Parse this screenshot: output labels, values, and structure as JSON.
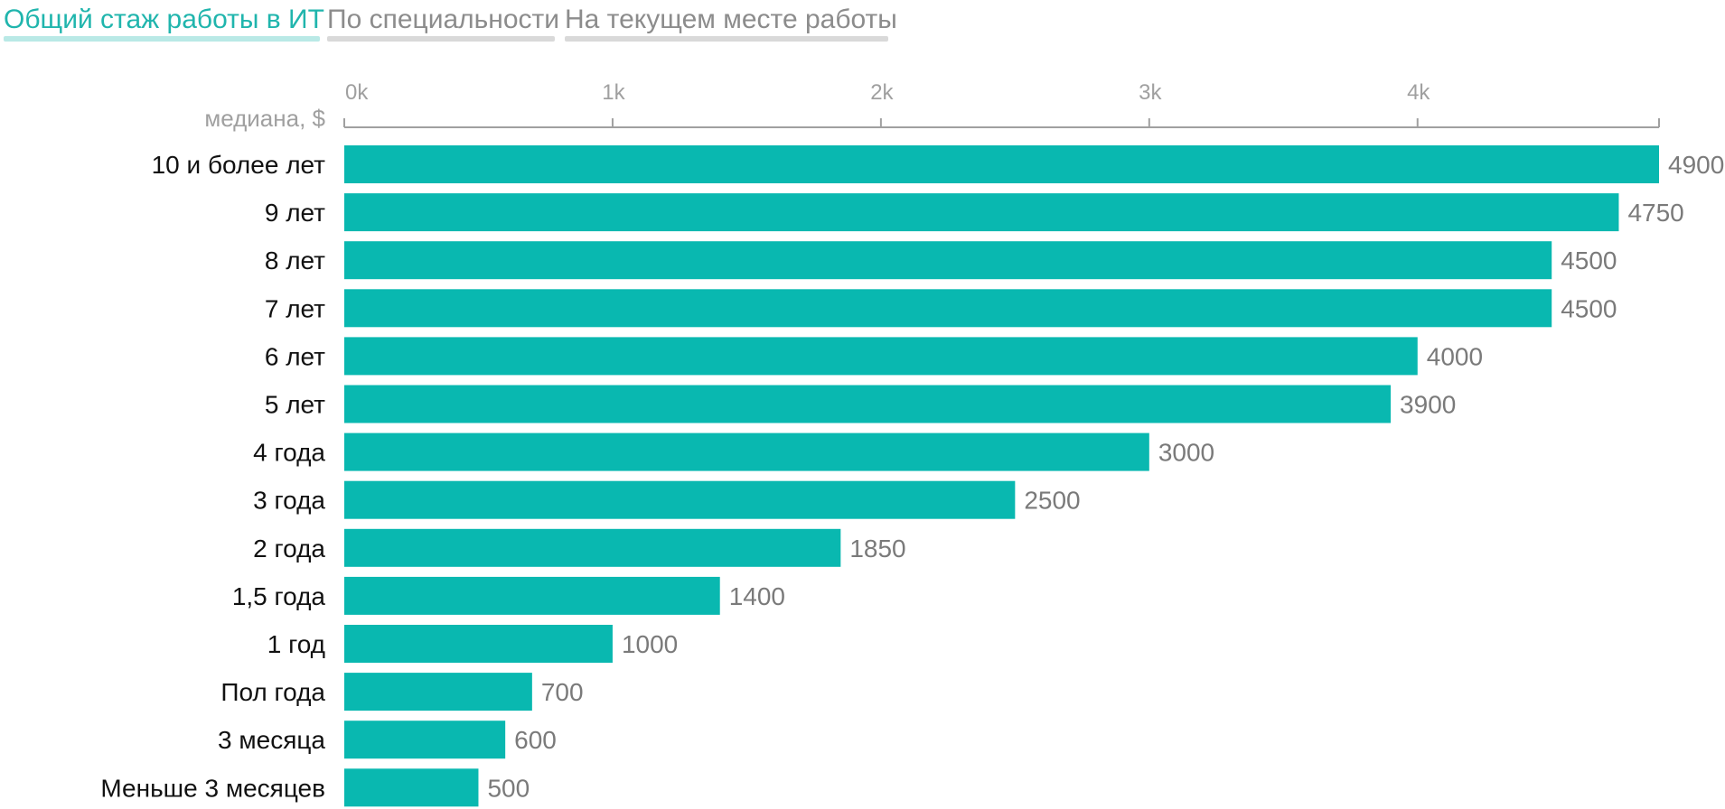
{
  "tabs": [
    {
      "label": "Общий стаж работы в ИТ",
      "active": true
    },
    {
      "label": "По специальности",
      "active": false
    },
    {
      "label": "На текущем месте работы",
      "active": false
    }
  ],
  "colors": {
    "bar": "#09b8b0",
    "accent": "#20b5ad",
    "axis": "#a0a0a0"
  },
  "chart_data": {
    "type": "bar",
    "orientation": "horizontal",
    "axis_unit_label": "медиана, $",
    "xlim": [
      0,
      4900
    ],
    "ticks": [
      0,
      1000,
      2000,
      3000,
      4000
    ],
    "tick_labels": [
      "0k",
      "1k",
      "2k",
      "3k",
      "4k"
    ],
    "axis_position": "top",
    "grid": false,
    "categories": [
      "10 и более лет",
      "9 лет",
      "8 лет",
      "7 лет",
      "6 лет",
      "5 лет",
      "4 года",
      "3 года",
      "2 года",
      "1,5 года",
      "1 год",
      "Пол года",
      "3 месяца",
      "Меньше 3 месяцев"
    ],
    "values": [
      4900,
      4750,
      4500,
      4500,
      4000,
      3900,
      3000,
      2500,
      1850,
      1400,
      1000,
      700,
      600,
      500
    ]
  }
}
